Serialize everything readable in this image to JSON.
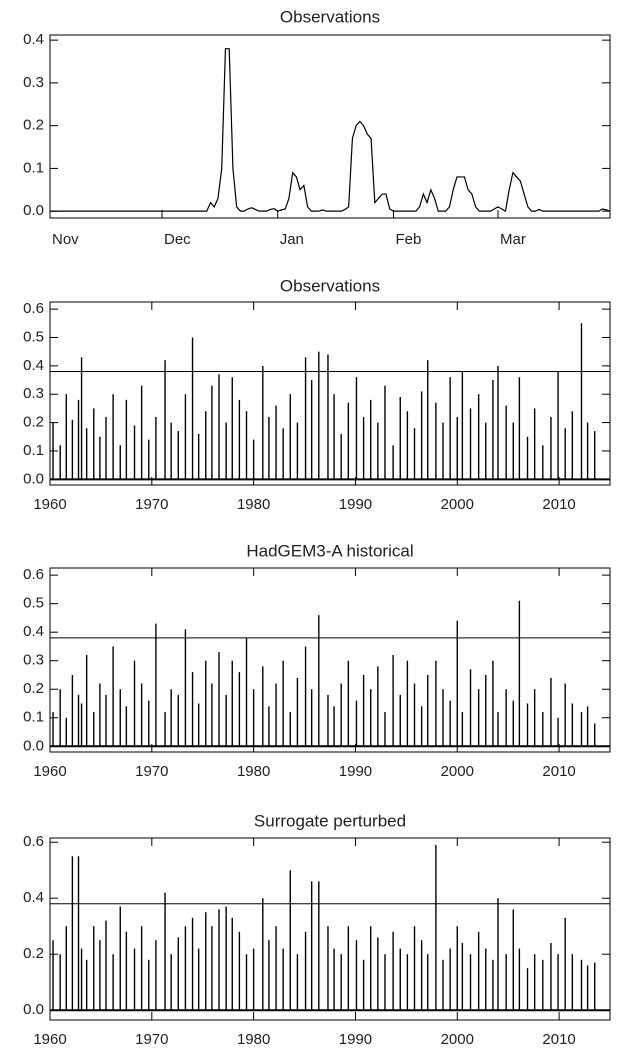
{
  "chart_data": [
    {
      "type": "line",
      "title": "Observations",
      "color": "#000000",
      "categories": [
        "Nov",
        null,
        null,
        null,
        null,
        null,
        null,
        null,
        null,
        null,
        null,
        null,
        null,
        null,
        null,
        null,
        null,
        null,
        null,
        null,
        null,
        null,
        null,
        null,
        null,
        null,
        null,
        null,
        null,
        null,
        "Dec",
        null,
        null,
        null,
        null,
        null,
        null,
        null,
        null,
        null,
        null,
        null,
        null,
        null,
        null,
        null,
        null,
        null,
        null,
        null,
        null,
        null,
        null,
        null,
        null,
        null,
        null,
        null,
        null,
        null,
        null,
        "Jan",
        null,
        null,
        null,
        null,
        null,
        null,
        null,
        null,
        null,
        null,
        null,
        null,
        null,
        null,
        null,
        null,
        null,
        null,
        null,
        null,
        null,
        null,
        null,
        null,
        null,
        null,
        null,
        null,
        null,
        null,
        "Feb",
        null,
        null,
        null,
        null,
        null,
        null,
        null,
        null,
        null,
        null,
        null,
        null,
        null,
        null,
        null,
        null,
        null,
        null,
        null,
        null,
        null,
        null,
        null,
        null,
        null,
        null,
        null,
        "Mar",
        null,
        null,
        null,
        null,
        null,
        null,
        null,
        null,
        null,
        null,
        null,
        null,
        null,
        null,
        null,
        null,
        null,
        null,
        null,
        null,
        null,
        null,
        null,
        null,
        null,
        null,
        null,
        null,
        null,
        null
      ],
      "values": [
        0,
        0,
        0,
        0,
        0,
        0,
        0,
        0,
        0,
        0,
        0,
        0,
        0,
        0,
        0,
        0,
        0,
        0,
        0,
        0,
        0,
        0,
        0,
        0,
        0,
        0,
        0,
        0,
        0,
        0,
        0,
        0,
        0,
        0,
        0,
        0,
        0,
        0,
        0,
        0,
        0,
        0,
        0,
        0.02,
        0.01,
        0.03,
        0.1,
        0.38,
        0.38,
        0.1,
        0.01,
        0,
        0,
        0.005,
        0.008,
        0.004,
        0,
        0,
        0,
        0.004,
        0.006,
        0,
        0.003,
        0.005,
        0.03,
        0.09,
        0.08,
        0.05,
        0.06,
        0.01,
        0,
        0,
        0,
        0.003,
        0,
        0,
        0,
        0,
        0,
        0.004,
        0.01,
        0.17,
        0.2,
        0.21,
        0.2,
        0.18,
        0.17,
        0.02,
        0.03,
        0.04,
        0.04,
        0.005,
        0,
        0,
        0,
        0,
        0,
        0,
        0,
        0.01,
        0.04,
        0.02,
        0.05,
        0.03,
        0,
        0,
        0,
        0.01,
        0.05,
        0.08,
        0.08,
        0.08,
        0.05,
        0.04,
        0.01,
        0,
        0,
        0,
        0,
        0.005,
        0.01,
        0.005,
        0,
        0.05,
        0.09,
        0.08,
        0.07,
        0.04,
        0.01,
        0,
        0,
        0.004,
        0,
        0,
        0,
        0,
        0,
        0,
        0,
        0,
        0,
        0,
        0,
        0,
        0,
        0,
        0,
        0,
        0.005,
        0.003,
        0
      ],
      "ylim": [
        -0.016,
        0.412
      ],
      "yticks": [
        {
          "value": 0,
          "label": "0.0"
        },
        0.1,
        0.2,
        0.3,
        0.4
      ]
    },
    {
      "type": "spike",
      "title": "Observations",
      "color": "#000000",
      "threshold": 0.38,
      "x": [
        1960.3,
        1961.0,
        1961.6,
        1962.2,
        1962.8,
        1963.1,
        1963.6,
        1964.3,
        1964.9,
        1965.5,
        1966.2,
        1966.9,
        1967.5,
        1968.3,
        1969.0,
        1969.7,
        1970.4,
        1971.3,
        1971.9,
        1972.6,
        1973.3,
        1974.0,
        1974.6,
        1975.3,
        1975.9,
        1976.6,
        1977.3,
        1977.9,
        1978.6,
        1979.3,
        1980.0,
        1980.9,
        1981.5,
        1982.2,
        1982.9,
        1983.6,
        1984.3,
        1985.1,
        1985.7,
        1986.4,
        1987.3,
        1987.9,
        1988.6,
        1989.3,
        1990.1,
        1990.8,
        1991.5,
        1992.2,
        1992.9,
        1993.7,
        1994.4,
        1995.1,
        1995.8,
        1996.5,
        1997.1,
        1997.9,
        1998.6,
        1999.3,
        2000.0,
        2000.5,
        2001.3,
        2002.1,
        2002.8,
        2003.5,
        2004.0,
        2004.8,
        2005.5,
        2006.1,
        2006.9,
        2007.6,
        2008.4,
        2009.2,
        2009.9,
        2010.6,
        2011.3,
        2012.2,
        2012.8,
        2013.5
      ],
      "values": [
        0.2,
        0.12,
        0.3,
        0.21,
        0.28,
        0.43,
        0.18,
        0.25,
        0.15,
        0.22,
        0.3,
        0.12,
        0.28,
        0.19,
        0.33,
        0.14,
        0.22,
        0.42,
        0.2,
        0.17,
        0.3,
        0.5,
        0.16,
        0.24,
        0.33,
        0.37,
        0.2,
        0.36,
        0.28,
        0.24,
        0.14,
        0.4,
        0.22,
        0.26,
        0.18,
        0.3,
        0.2,
        0.43,
        0.35,
        0.45,
        0.44,
        0.3,
        0.16,
        0.27,
        0.36,
        0.22,
        0.28,
        0.2,
        0.33,
        0.12,
        0.29,
        0.24,
        0.18,
        0.31,
        0.42,
        0.27,
        0.2,
        0.36,
        0.22,
        0.38,
        0.25,
        0.3,
        0.2,
        0.35,
        0.4,
        0.26,
        0.2,
        0.36,
        0.15,
        0.25,
        0.12,
        0.22,
        0.38,
        0.18,
        0.24,
        0.55,
        0.2,
        0.17
      ],
      "xlim": [
        1960,
        2015
      ],
      "xticks": [
        1960,
        1970,
        1980,
        1990,
        2000,
        2010
      ],
      "ylim": [
        -0.02,
        0.625
      ],
      "yticks": [
        {
          "value": 0,
          "label": "0.0"
        },
        0.1,
        0.2,
        0.3,
        0.4,
        0.5,
        0.6
      ]
    },
    {
      "type": "spike",
      "title": "HadGEM3-A historical",
      "color": "#000000",
      "threshold": 0.38,
      "x": [
        1960.3,
        1961.0,
        1961.6,
        1962.2,
        1962.8,
        1963.1,
        1963.6,
        1964.3,
        1964.9,
        1965.5,
        1966.2,
        1966.9,
        1967.5,
        1968.3,
        1969.0,
        1969.7,
        1970.4,
        1971.3,
        1971.9,
        1972.6,
        1973.3,
        1974.0,
        1974.6,
        1975.3,
        1975.9,
        1976.6,
        1977.3,
        1977.9,
        1978.6,
        1979.3,
        1980.0,
        1980.9,
        1981.5,
        1982.2,
        1982.9,
        1983.6,
        1984.3,
        1985.1,
        1985.7,
        1986.4,
        1987.3,
        1987.9,
        1988.6,
        1989.3,
        1990.1,
        1990.8,
        1991.5,
        1992.2,
        1992.9,
        1993.7,
        1994.4,
        1995.1,
        1995.8,
        1996.5,
        1997.1,
        1997.9,
        1998.6,
        1999.3,
        2000.0,
        2000.5,
        2001.3,
        2002.1,
        2002.8,
        2003.5,
        2004.0,
        2004.8,
        2005.5,
        2006.1,
        2006.9,
        2007.6,
        2008.4,
        2009.2,
        2009.9,
        2010.6,
        2011.3,
        2012.2,
        2012.8,
        2013.5
      ],
      "values": [
        0.12,
        0.2,
        0.1,
        0.25,
        0.18,
        0.15,
        0.32,
        0.12,
        0.22,
        0.18,
        0.35,
        0.2,
        0.14,
        0.3,
        0.22,
        0.16,
        0.43,
        0.12,
        0.2,
        0.18,
        0.41,
        0.26,
        0.15,
        0.3,
        0.22,
        0.33,
        0.18,
        0.3,
        0.26,
        0.38,
        0.2,
        0.28,
        0.14,
        0.22,
        0.3,
        0.12,
        0.24,
        0.35,
        0.2,
        0.46,
        0.18,
        0.14,
        0.22,
        0.3,
        0.16,
        0.25,
        0.2,
        0.28,
        0.12,
        0.32,
        0.18,
        0.3,
        0.22,
        0.14,
        0.25,
        0.3,
        0.2,
        0.16,
        0.44,
        0.12,
        0.27,
        0.2,
        0.25,
        0.3,
        0.12,
        0.2,
        0.16,
        0.51,
        0.15,
        0.2,
        0.12,
        0.24,
        0.1,
        0.22,
        0.15,
        0.12,
        0.14,
        0.08
      ],
      "xlim": [
        1960,
        2015
      ],
      "xticks": [
        1960,
        1970,
        1980,
        1990,
        2000,
        2010
      ],
      "ylim": [
        -0.02,
        0.625
      ],
      "yticks": [
        {
          "value": 0,
          "label": "0.0"
        },
        0.1,
        0.2,
        0.3,
        0.4,
        0.5,
        0.6
      ]
    },
    {
      "type": "spike",
      "title": "Surrogate perturbed",
      "color": "#000000",
      "threshold": 0.38,
      "x": [
        1960.3,
        1961.0,
        1961.6,
        1962.2,
        1962.8,
        1963.1,
        1963.6,
        1964.3,
        1964.9,
        1965.5,
        1966.2,
        1966.9,
        1967.5,
        1968.3,
        1969.0,
        1969.7,
        1970.4,
        1971.3,
        1971.9,
        1972.6,
        1973.3,
        1974.0,
        1974.6,
        1975.3,
        1975.9,
        1976.6,
        1977.3,
        1977.9,
        1978.6,
        1979.3,
        1980.0,
        1980.9,
        1981.5,
        1982.2,
        1982.9,
        1983.6,
        1984.3,
        1985.1,
        1985.7,
        1986.4,
        1987.3,
        1987.9,
        1988.6,
        1989.3,
        1990.1,
        1990.8,
        1991.5,
        1992.2,
        1992.9,
        1993.7,
        1994.4,
        1995.1,
        1995.8,
        1996.5,
        1997.1,
        1997.9,
        1998.6,
        1999.3,
        2000.0,
        2000.5,
        2001.3,
        2002.1,
        2002.8,
        2003.5,
        2004.0,
        2004.8,
        2005.5,
        2006.1,
        2006.9,
        2007.6,
        2008.4,
        2009.2,
        2009.9,
        2010.6,
        2011.3,
        2012.2,
        2012.8,
        2013.5
      ],
      "values": [
        0.25,
        0.2,
        0.3,
        0.55,
        0.55,
        0.22,
        0.18,
        0.3,
        0.25,
        0.32,
        0.2,
        0.37,
        0.28,
        0.22,
        0.3,
        0.18,
        0.25,
        0.42,
        0.2,
        0.26,
        0.3,
        0.33,
        0.22,
        0.35,
        0.3,
        0.36,
        0.37,
        0.33,
        0.28,
        0.2,
        0.22,
        0.4,
        0.25,
        0.3,
        0.22,
        0.5,
        0.2,
        0.28,
        0.46,
        0.46,
        0.3,
        0.22,
        0.2,
        0.3,
        0.25,
        0.18,
        0.3,
        0.26,
        0.2,
        0.28,
        0.22,
        0.2,
        0.3,
        0.25,
        0.2,
        0.59,
        0.18,
        0.22,
        0.3,
        0.24,
        0.2,
        0.28,
        0.22,
        0.18,
        0.4,
        0.2,
        0.36,
        0.22,
        0.15,
        0.2,
        0.18,
        0.24,
        0.2,
        0.33,
        0.2,
        0.18,
        0.16,
        0.17
      ],
      "xlim": [
        1960,
        2015
      ],
      "xticks": [
        1960,
        1970,
        1980,
        1990,
        2000,
        2010
      ],
      "ylim": [
        -0.035,
        0.615
      ],
      "yticks": [
        {
          "value": 0,
          "label": "0.0"
        },
        0.2,
        0.4,
        0.6
      ]
    }
  ]
}
